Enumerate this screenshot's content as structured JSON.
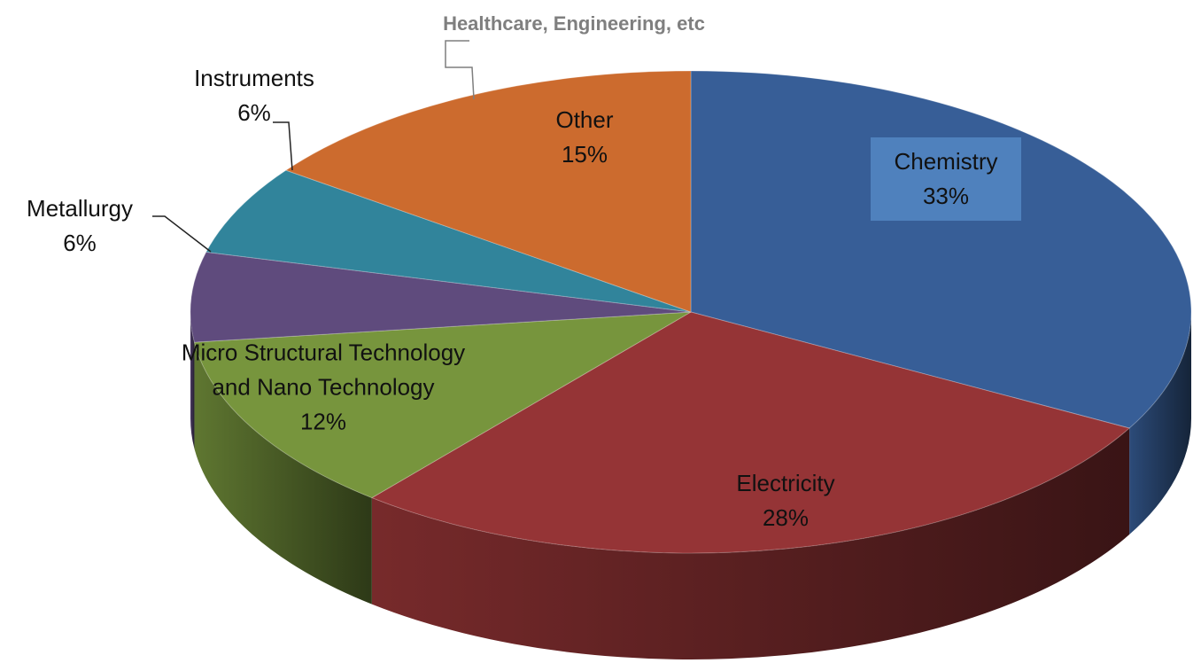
{
  "chart_data": {
    "type": "pie3d",
    "annotation": "Healthcare, Engineering, etc",
    "categories": [
      "Chemistry",
      "Electricity",
      "Micro Structural Technology and Nano Technology",
      "Metallurgy",
      "Instruments",
      "Other"
    ],
    "values": [
      33,
      28,
      12,
      6,
      6,
      15
    ],
    "value_labels": [
      "33%",
      "28%",
      "12%",
      "6%",
      "6%",
      "15%"
    ],
    "colors": [
      "#375e97",
      "#953436",
      "#77953d",
      "#5f4b7d",
      "#31849b",
      "#cc6b2e"
    ]
  }
}
